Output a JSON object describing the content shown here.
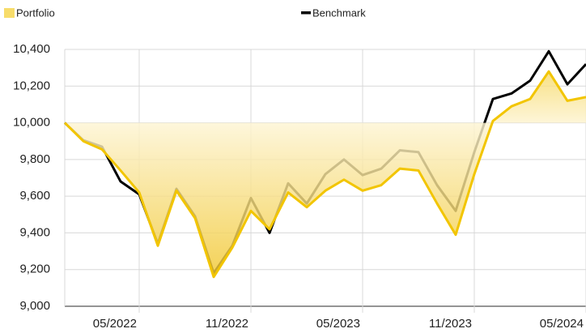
{
  "chart_data": {
    "type": "line",
    "x": [
      "01/2022",
      "02/2022",
      "03/2022",
      "04/2022",
      "05/2022",
      "06/2022",
      "07/2022",
      "08/2022",
      "09/2022",
      "10/2022",
      "11/2022",
      "12/2022",
      "01/2023",
      "02/2023",
      "03/2023",
      "04/2023",
      "05/2023",
      "06/2023",
      "07/2023",
      "08/2023",
      "09/2023",
      "10/2023",
      "11/2023",
      "12/2023",
      "01/2024",
      "02/2024",
      "03/2024",
      "04/2024",
      "05/2024"
    ],
    "xticks": [
      "05/2022",
      "11/2022",
      "05/2023",
      "11/2023",
      "05/2024"
    ],
    "series": [
      {
        "name": "Portfolio",
        "color": "#f2c500",
        "fill": "area",
        "values": [
          10000,
          9900,
          9855,
          9740,
          9620,
          9330,
          9630,
          9480,
          9160,
          9320,
          9520,
          9420,
          9620,
          9540,
          9630,
          9690,
          9630,
          9660,
          9750,
          9740,
          9560,
          9390,
          9720,
          10010,
          10090,
          10130,
          10280,
          10120,
          10140
        ]
      },
      {
        "name": "Benchmark",
        "color": "#000000",
        "values": [
          10000,
          9905,
          9870,
          9680,
          9610,
          9340,
          9640,
          9490,
          9180,
          9330,
          9590,
          9400,
          9670,
          9560,
          9720,
          9800,
          9715,
          9750,
          9850,
          9840,
          9660,
          9520,
          9840,
          10130,
          10160,
          10230,
          10390,
          10210,
          10320
        ]
      }
    ],
    "ylim": [
      9000,
      10400
    ],
    "yticks": [
      {
        "value": 9000,
        "label": "9,000"
      },
      {
        "value": 9200,
        "label": "9,200"
      },
      {
        "value": 9400,
        "label": "9,400"
      },
      {
        "value": 9600,
        "label": "9,600"
      },
      {
        "value": 9800,
        "label": "9,800"
      },
      {
        "value": 10000,
        "label": "10,000"
      },
      {
        "value": 10200,
        "label": "10,200"
      },
      {
        "value": 10400,
        "label": "10,400"
      }
    ],
    "grid": true
  }
}
